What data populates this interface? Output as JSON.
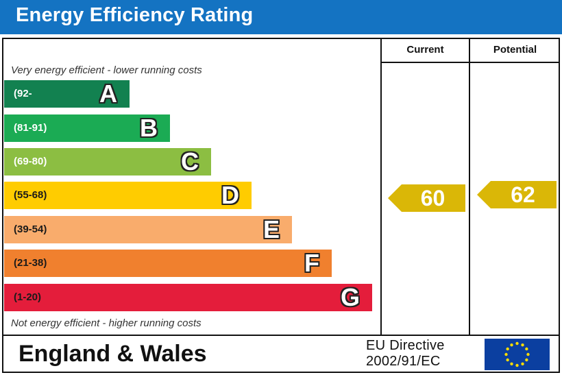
{
  "title": "Energy Efficiency Rating",
  "columns": {
    "current": "Current",
    "potential": "Potential"
  },
  "captions": {
    "top": "Very energy efficient - lower running costs",
    "bottom": "Not energy efficient - higher running costs"
  },
  "bands": [
    {
      "letter": "A",
      "range": "(92-",
      "color": "#128150"
    },
    {
      "letter": "B",
      "range": "(81-91)",
      "color": "#1bab54"
    },
    {
      "letter": "C",
      "range": "(69-80)",
      "color": "#8cbe42"
    },
    {
      "letter": "D",
      "range": "(55-68)",
      "color": "#ffcc00"
    },
    {
      "letter": "E",
      "range": "(39-54)",
      "color": "#f9ac6c"
    },
    {
      "letter": "F",
      "range": "(21-38)",
      "color": "#f0802e"
    },
    {
      "letter": "G",
      "range": "(1-20)",
      "color": "#e41d3b"
    }
  ],
  "current_rating": {
    "value": "60",
    "band": "D",
    "color": "#dab707"
  },
  "potential_rating": {
    "value": "62",
    "band": "D",
    "color": "#dab707"
  },
  "footer": {
    "region": "England & Wales",
    "directive_line1": "EU Directive",
    "directive_line2": "2002/91/EC"
  },
  "colors": {
    "title_bar": "#1473c2",
    "eu_flag": "#0b3fa0",
    "eu_stars": "#ffdd00"
  },
  "icons": {
    "flag": "eu-flag-icon"
  }
}
